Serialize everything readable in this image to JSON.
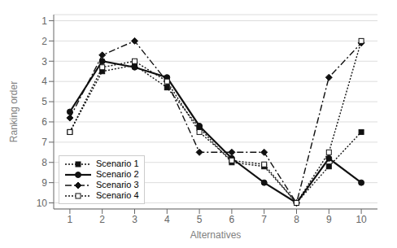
{
  "chart_data": {
    "type": "line",
    "xlabel": "Alternatives",
    "ylabel": "Ranking order",
    "x": [
      1,
      2,
      3,
      4,
      5,
      6,
      7,
      8,
      9,
      10
    ],
    "series": [
      {
        "name": "Scenario 1",
        "color": "#111111",
        "values": [
          6.5,
          3.5,
          3.2,
          4.3,
          6.3,
          8.0,
          8.2,
          10,
          8.2,
          6.5
        ],
        "line_style": "dotted",
        "marker": "square"
      },
      {
        "name": "Scenario 2",
        "color": "#111111",
        "values": [
          5.5,
          3.0,
          3.3,
          3.8,
          6.2,
          7.8,
          9.0,
          10,
          7.8,
          9.0
        ],
        "line_style": "solid",
        "marker": "circle"
      },
      {
        "name": "Scenario 3",
        "color": "#111111",
        "values": [
          5.8,
          2.7,
          2.0,
          4.0,
          7.5,
          7.5,
          7.5,
          10,
          3.8,
          2.1
        ],
        "line_style": "dashdot",
        "marker": "diamond"
      },
      {
        "name": "Scenario 4",
        "color": "#111111",
        "values": [
          6.5,
          3.3,
          3.0,
          4.0,
          6.5,
          7.9,
          8.1,
          10,
          7.5,
          2.0
        ],
        "line_style": "dotted",
        "marker": "open_square"
      }
    ],
    "xlim": [
      0.5,
      10.5
    ],
    "xticks": [
      1,
      2,
      3,
      4,
      5,
      6,
      7,
      8,
      9,
      10
    ],
    "ylim": [
      10.3,
      0.7
    ],
    "yticks": [
      1,
      2,
      3,
      4,
      5,
      6,
      7,
      8,
      9,
      10
    ],
    "grid": "y",
    "legend": "lower left"
  }
}
